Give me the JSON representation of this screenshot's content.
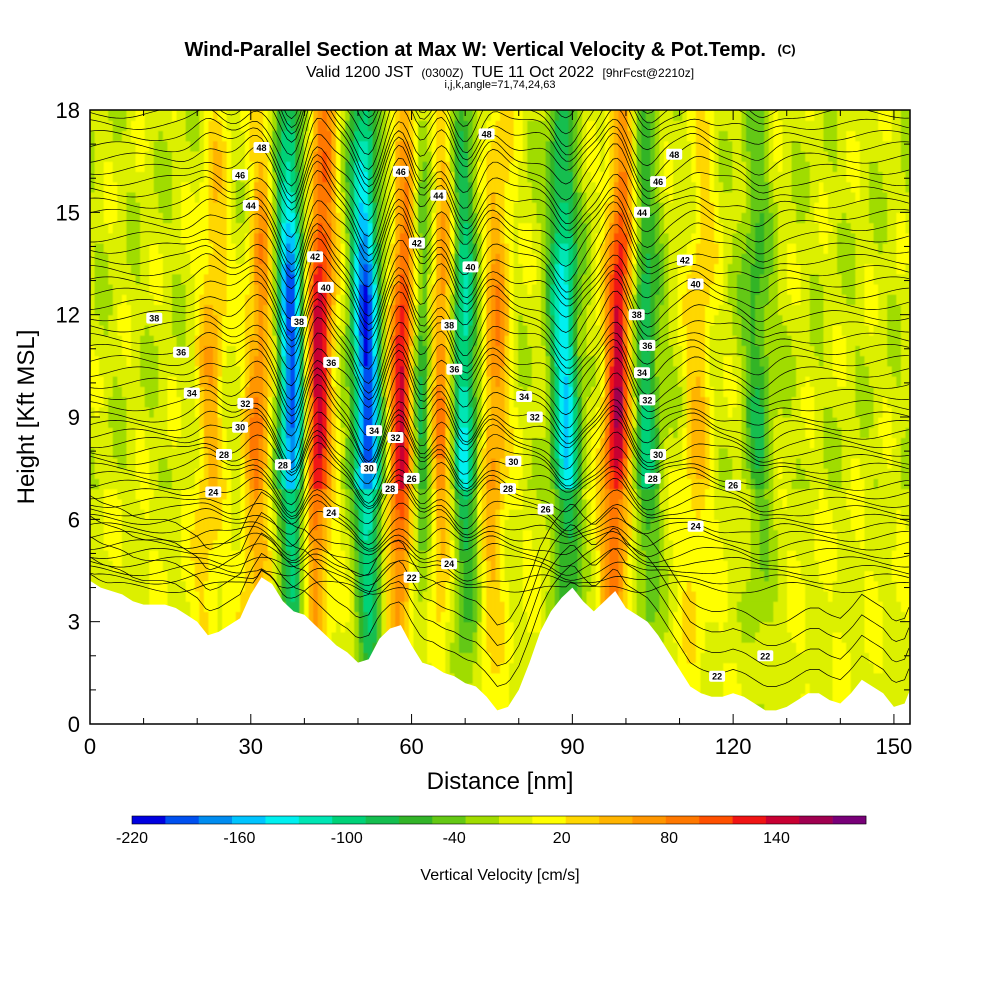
{
  "chart_data": {
    "type": "heatmap",
    "title": "Wind-Parallel Section at Max W: Vertical Velocity & Pot.Temp.",
    "title_mark": "(C)",
    "subtitle_parts": [
      "Valid 1200 JST",
      "(0300Z)",
      "TUE 11 Oct 2022",
      "[9hrFcst@2210z]"
    ],
    "subtitle2": "i,j,k,angle=71,74,24,63",
    "xlabel": "Distance [nm]",
    "ylabel": "Height [Kft MSL]",
    "xlim": [
      0,
      153
    ],
    "ylim": [
      0,
      18
    ],
    "x_ticks": [
      0,
      30,
      60,
      90,
      120,
      150
    ],
    "y_ticks": [
      0,
      3,
      6,
      9,
      12,
      15,
      18
    ],
    "colorbar": {
      "label": "Vertical Velocity [cm/s]",
      "tick_labels": [
        "-220",
        "-160",
        "-100",
        "-40",
        "20",
        "80",
        "140"
      ],
      "tick_values": [
        -220,
        -160,
        -100,
        -40,
        20,
        80,
        140
      ],
      "min": -220,
      "max": 170,
      "step": 20,
      "colors": [
        "#0000e0",
        "#0050f0",
        "#008cf0",
        "#00c4ff",
        "#00f0f0",
        "#00e6b4",
        "#00d278",
        "#14be50",
        "#32b428",
        "#64c814",
        "#a0dc00",
        "#dcf000",
        "#ffff00",
        "#ffd700",
        "#ffb400",
        "#ff9600",
        "#ff7800",
        "#ff5000",
        "#f01414",
        "#c80032",
        "#a00050",
        "#780078"
      ]
    },
    "updrafts": [
      {
        "x": 22,
        "w": 60
      },
      {
        "x": 31,
        "w": 90
      },
      {
        "x": 42,
        "w": 160
      },
      {
        "x": 58,
        "w": 170
      },
      {
        "x": 65,
        "w": 110
      },
      {
        "x": 75,
        "w": 80
      },
      {
        "x": 98,
        "w": 160
      },
      {
        "x": 113,
        "w": 50
      }
    ],
    "downdrafts": [
      {
        "x": 38,
        "w": -190
      },
      {
        "x": 52,
        "w": -200
      },
      {
        "x": 62,
        "w": -110
      },
      {
        "x": 70,
        "w": -130
      },
      {
        "x": 89,
        "w": -140
      },
      {
        "x": 104,
        "w": -90
      },
      {
        "x": 125,
        "w": -60
      }
    ],
    "terrain": {
      "x": [
        0,
        2,
        4,
        6,
        8,
        10,
        12,
        14,
        16,
        18,
        20,
        22,
        24,
        26,
        28,
        30,
        32,
        34,
        36,
        38,
        40,
        42,
        44,
        46,
        48,
        50,
        52,
        54,
        56,
        58,
        60,
        62,
        64,
        66,
        68,
        70,
        72,
        74,
        76,
        78,
        80,
        82,
        84,
        86,
        88,
        90,
        92,
        94,
        96,
        98,
        100,
        102,
        104,
        106,
        108,
        110,
        112,
        114,
        116,
        118,
        120,
        122,
        124,
        126,
        128,
        130,
        132,
        134,
        136,
        138,
        140,
        142,
        144,
        146,
        148,
        150,
        152,
        153
      ],
      "height": [
        4.2,
        4.0,
        3.9,
        3.8,
        3.6,
        3.5,
        3.5,
        3.5,
        3.4,
        3.2,
        3.0,
        2.6,
        2.7,
        2.9,
        3.1,
        3.8,
        4.3,
        4.1,
        3.6,
        3.3,
        3.2,
        2.9,
        2.6,
        2.3,
        2.1,
        1.8,
        1.9,
        2.5,
        2.8,
        2.9,
        2.3,
        1.8,
        1.7,
        1.5,
        1.4,
        1.2,
        1.1,
        0.8,
        0.4,
        0.5,
        1.0,
        1.8,
        2.7,
        3.3,
        3.7,
        4.0,
        3.6,
        3.3,
        3.6,
        3.9,
        3.4,
        3.2,
        3.0,
        2.6,
        2.1,
        1.6,
        1.1,
        0.9,
        0.8,
        0.8,
        0.9,
        0.8,
        0.6,
        0.4,
        0.4,
        0.5,
        0.7,
        0.9,
        0.9,
        0.7,
        0.6,
        0.9,
        1.3,
        1.1,
        0.9,
        0.5,
        0.6,
        1.0
      ]
    },
    "theta_levels": [
      22,
      24,
      26,
      28,
      30,
      32,
      34,
      36,
      38,
      40,
      42,
      44,
      46,
      48
    ],
    "theta_labels": [
      {
        "text": "48",
        "x": 32,
        "y": 16.9
      },
      {
        "text": "46",
        "x": 28,
        "y": 16.1
      },
      {
        "text": "44",
        "x": 30,
        "y": 15.2
      },
      {
        "text": "42",
        "x": 42,
        "y": 13.7
      },
      {
        "text": "40",
        "x": 44,
        "y": 12.8
      },
      {
        "text": "38",
        "x": 39,
        "y": 11.8
      },
      {
        "text": "38",
        "x": 12,
        "y": 11.9
      },
      {
        "text": "36",
        "x": 17,
        "y": 10.9
      },
      {
        "text": "34",
        "x": 19,
        "y": 9.7
      },
      {
        "text": "32",
        "x": 29,
        "y": 9.4
      },
      {
        "text": "30",
        "x": 28,
        "y": 8.7
      },
      {
        "text": "28",
        "x": 25,
        "y": 7.9
      },
      {
        "text": "24",
        "x": 23,
        "y": 6.8
      },
      {
        "text": "28",
        "x": 36,
        "y": 7.6
      },
      {
        "text": "24",
        "x": 45,
        "y": 6.2
      },
      {
        "text": "36",
        "x": 45,
        "y": 10.6
      },
      {
        "text": "48",
        "x": 74,
        "y": 17.3
      },
      {
        "text": "46",
        "x": 58,
        "y": 16.2
      },
      {
        "text": "44",
        "x": 65,
        "y": 15.5
      },
      {
        "text": "42",
        "x": 61,
        "y": 14.1
      },
      {
        "text": "40",
        "x": 71,
        "y": 13.4
      },
      {
        "text": "38",
        "x": 67,
        "y": 11.7
      },
      {
        "text": "36",
        "x": 68,
        "y": 10.4
      },
      {
        "text": "34",
        "x": 53,
        "y": 8.6
      },
      {
        "text": "32",
        "x": 57,
        "y": 8.4
      },
      {
        "text": "30",
        "x": 52,
        "y": 7.5
      },
      {
        "text": "28",
        "x": 56,
        "y": 6.9
      },
      {
        "text": "26",
        "x": 60,
        "y": 7.2
      },
      {
        "text": "22",
        "x": 60,
        "y": 4.3
      },
      {
        "text": "24",
        "x": 67,
        "y": 4.7
      },
      {
        "text": "34",
        "x": 81,
        "y": 9.6
      },
      {
        "text": "32",
        "x": 83,
        "y": 9.0
      },
      {
        "text": "30",
        "x": 79,
        "y": 7.7
      },
      {
        "text": "28",
        "x": 78,
        "y": 6.9
      },
      {
        "text": "26",
        "x": 85,
        "y": 6.3
      },
      {
        "text": "48",
        "x": 109,
        "y": 16.7
      },
      {
        "text": "46",
        "x": 106,
        "y": 15.9
      },
      {
        "text": "44",
        "x": 103,
        "y": 15.0
      },
      {
        "text": "42",
        "x": 111,
        "y": 13.6
      },
      {
        "text": "40",
        "x": 113,
        "y": 12.9
      },
      {
        "text": "38",
        "x": 102,
        "y": 12.0
      },
      {
        "text": "36",
        "x": 104,
        "y": 11.1
      },
      {
        "text": "34",
        "x": 103,
        "y": 10.3
      },
      {
        "text": "32",
        "x": 104,
        "y": 9.5
      },
      {
        "text": "30",
        "x": 106,
        "y": 7.9
      },
      {
        "text": "28",
        "x": 105,
        "y": 7.2
      },
      {
        "text": "26",
        "x": 120,
        "y": 7.0
      },
      {
        "text": "24",
        "x": 113,
        "y": 5.8
      },
      {
        "text": "22",
        "x": 126,
        "y": 2.0
      },
      {
        "text": "22",
        "x": 117,
        "y": 1.4
      }
    ]
  }
}
